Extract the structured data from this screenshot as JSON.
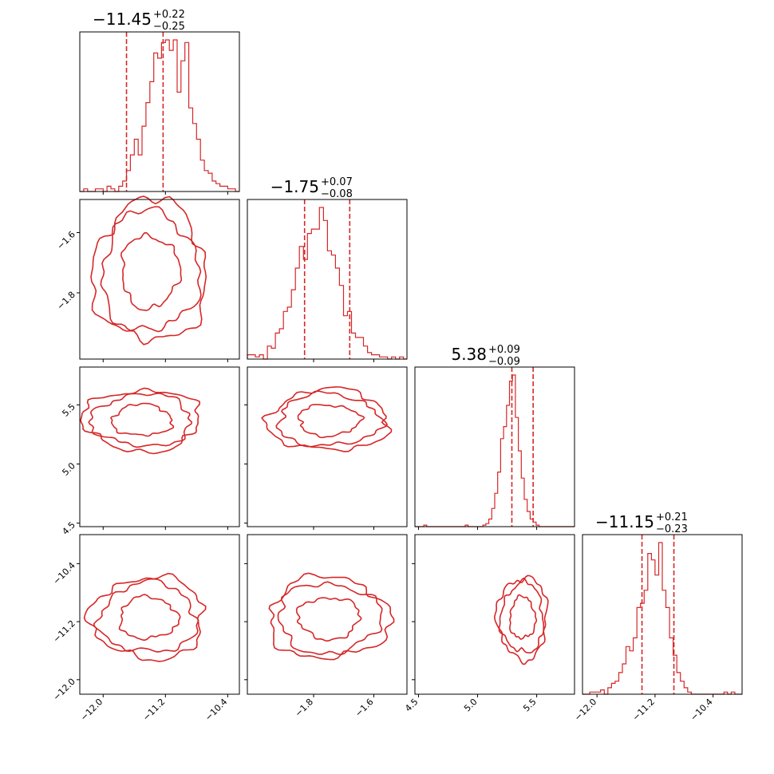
{
  "chart_data": {
    "type": "corner",
    "color": "#d62728",
    "parameters": [
      {
        "title": "-11.45",
        "plus": "+0.22",
        "minus": "-0.25",
        "range": [
          -12.3,
          -10.25
        ],
        "ticks": [
          -12.0,
          -11.2,
          -10.4
        ],
        "tick_labels": [
          "-12.0",
          "-11.2",
          "-10.4"
        ],
        "quantiles": [
          -11.7,
          -11.23
        ],
        "hist": {
          "start": -12.3,
          "step": 0.05,
          "counts": [
            0,
            1,
            0,
            0,
            1,
            1,
            0,
            2,
            1,
            0,
            2,
            4,
            8,
            14,
            20,
            14,
            25,
            34,
            42,
            53,
            51,
            57,
            58,
            54,
            58,
            38,
            50,
            57,
            32,
            26,
            20,
            12,
            8,
            7,
            4,
            3,
            2,
            2,
            1,
            1,
            0
          ]
        }
      },
      {
        "title": "-1.75",
        "plus": "+0.07",
        "minus": "-0.08",
        "range": [
          -2.02,
          -1.49
        ],
        "ticks": [
          -1.8,
          -1.6
        ],
        "tick_labels": [
          "-1.8",
          "-1.6"
        ],
        "quantiles": [
          -1.83,
          -1.68
        ],
        "hist": {
          "start": -2.02,
          "step": 0.0133,
          "counts": [
            2,
            2,
            1,
            2,
            0,
            6,
            5,
            12,
            14,
            22,
            24,
            32,
            42,
            52,
            46,
            58,
            60,
            60,
            70,
            64,
            50,
            48,
            42,
            34,
            20,
            22,
            12,
            10,
            10,
            6,
            3,
            2,
            2,
            1,
            1,
            0,
            1,
            0,
            1,
            0
          ]
        }
      },
      {
        "title": "5.38",
        "plus": "+0.09",
        "minus": "-0.09",
        "range": [
          4.47,
          5.82
        ],
        "ticks": [
          4.5,
          5.0,
          5.5
        ],
        "tick_labels": [
          "4.5",
          "5.0",
          "5.5"
        ],
        "quantiles": [
          5.29,
          5.47
        ],
        "hist": {
          "start": 4.47,
          "step": 0.025,
          "counts": [
            0,
            0,
            0,
            1,
            0,
            0,
            0,
            0,
            0,
            0,
            0,
            0,
            0,
            0,
            0,
            0,
            0,
            1,
            0,
            0,
            0,
            0,
            0,
            1,
            2,
            5,
            12,
            22,
            36,
            58,
            66,
            80,
            96,
            100,
            72,
            50,
            32,
            18,
            10,
            5,
            3,
            1,
            0,
            0,
            0,
            0,
            0,
            0,
            0,
            0,
            0,
            0,
            0,
            0
          ]
        }
      },
      {
        "title": "-11.15",
        "plus": "+0.21",
        "minus": "-0.23",
        "range": [
          -12.2,
          -10.0
        ],
        "ticks": [
          -12.0,
          -11.2,
          -10.4
        ],
        "tick_labels": [
          "-12.0",
          "-11.2",
          "-10.4"
        ],
        "quantiles": [
          -11.38,
          -10.94
        ],
        "hist": {
          "start": -12.2,
          "step": 0.05,
          "counts": [
            0,
            0,
            1,
            1,
            1,
            2,
            0,
            3,
            5,
            6,
            10,
            14,
            22,
            20,
            26,
            40,
            42,
            48,
            65,
            62,
            55,
            70,
            48,
            40,
            26,
            18,
            10,
            6,
            3,
            1,
            0,
            0,
            0,
            0,
            0,
            0,
            0,
            0,
            0,
            1,
            0,
            1,
            0,
            0
          ]
        }
      }
    ],
    "contours": [
      {
        "row": 1,
        "col": 0,
        "center": [
          -11.4,
          -1.73
        ],
        "scale": [
          0.31,
          0.1
        ],
        "angle": -0.35
      },
      {
        "row": 2,
        "col": 0,
        "center": [
          -11.5,
          5.37
        ],
        "scale": [
          0.32,
          0.11
        ],
        "angle": 0.0
      },
      {
        "row": 2,
        "col": 1,
        "center": [
          -1.75,
          5.37
        ],
        "scale": [
          0.085,
          0.11
        ],
        "angle": -0.35
      },
      {
        "row": 3,
        "col": 0,
        "center": [
          -11.42,
          -11.15
        ],
        "scale": [
          0.31,
          0.24
        ],
        "angle": 0.28
      },
      {
        "row": 3,
        "col": 1,
        "center": [
          -1.75,
          -11.15
        ],
        "scale": [
          0.085,
          0.24
        ],
        "angle": 0.05
      },
      {
        "row": 3,
        "col": 2,
        "center": [
          5.38,
          -11.15
        ],
        "scale": [
          0.09,
          0.24
        ],
        "angle": 0.05
      }
    ],
    "contour_levels": [
      1.2,
      2.0,
      2.35
    ]
  }
}
